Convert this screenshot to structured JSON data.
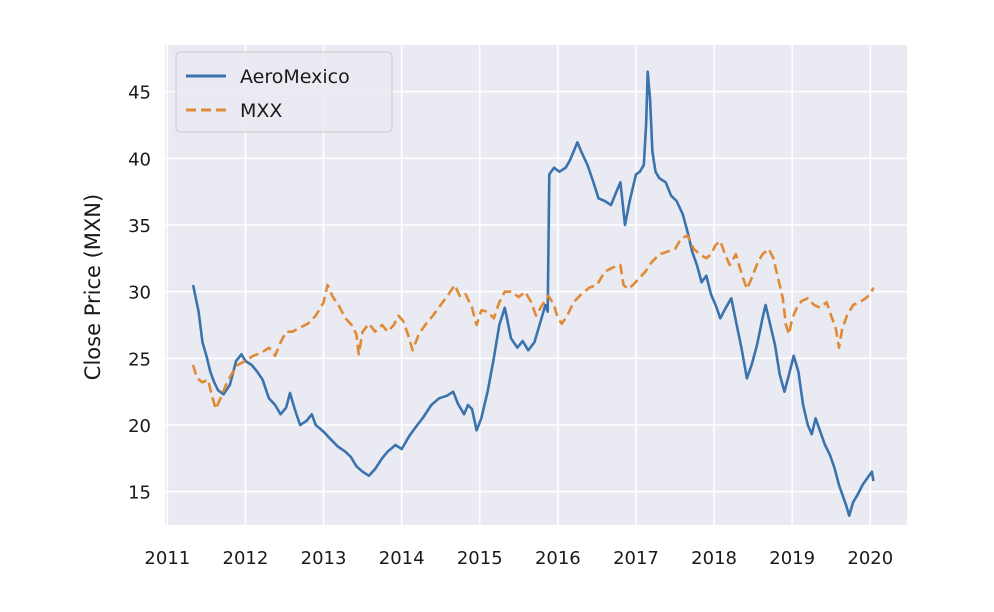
{
  "chart_data": {
    "type": "line",
    "title": "",
    "xlabel": "",
    "ylabel": "Close Price (MXN)",
    "xlim": [
      2010.97,
      2020.47
    ],
    "ylim": [
      12.5,
      48.5
    ],
    "x_ticks": [
      2011,
      2012,
      2013,
      2014,
      2015,
      2016,
      2017,
      2018,
      2019,
      2020
    ],
    "x_tick_labels": [
      "2011",
      "2012",
      "2013",
      "2014",
      "2015",
      "2016",
      "2017",
      "2018",
      "2019",
      "2020"
    ],
    "y_ticks": [
      15,
      20,
      25,
      30,
      35,
      40,
      45
    ],
    "y_tick_labels": [
      "15",
      "20",
      "25",
      "30",
      "35",
      "40",
      "45"
    ],
    "grid": true,
    "legend_position": "top-left",
    "colors": {
      "background": "#eaeaf2",
      "grid": "#ffffff"
    },
    "series": [
      {
        "name": "AeroMexico",
        "color": "#3a73ad",
        "style": "solid",
        "points": [
          [
            2011.33,
            30.5
          ],
          [
            2011.4,
            28.5
          ],
          [
            2011.45,
            26.2
          ],
          [
            2011.5,
            25.2
          ],
          [
            2011.55,
            24.0
          ],
          [
            2011.6,
            23.2
          ],
          [
            2011.65,
            22.6
          ],
          [
            2011.72,
            22.3
          ],
          [
            2011.8,
            23.0
          ],
          [
            2011.88,
            24.8
          ],
          [
            2011.95,
            25.3
          ],
          [
            2012.0,
            24.8
          ],
          [
            2012.08,
            24.5
          ],
          [
            2012.15,
            24.0
          ],
          [
            2012.22,
            23.4
          ],
          [
            2012.3,
            22.0
          ],
          [
            2012.38,
            21.5
          ],
          [
            2012.45,
            20.8
          ],
          [
            2012.52,
            21.3
          ],
          [
            2012.57,
            22.4
          ],
          [
            2012.63,
            21.2
          ],
          [
            2012.7,
            20.0
          ],
          [
            2012.78,
            20.3
          ],
          [
            2012.85,
            20.8
          ],
          [
            2012.9,
            20.0
          ],
          [
            2013.0,
            19.5
          ],
          [
            2013.08,
            19.0
          ],
          [
            2013.18,
            18.4
          ],
          [
            2013.28,
            18.0
          ],
          [
            2013.35,
            17.6
          ],
          [
            2013.42,
            16.9
          ],
          [
            2013.5,
            16.5
          ],
          [
            2013.58,
            16.2
          ],
          [
            2013.66,
            16.7
          ],
          [
            2013.75,
            17.5
          ],
          [
            2013.82,
            18.0
          ],
          [
            2013.92,
            18.5
          ],
          [
            2014.0,
            18.2
          ],
          [
            2014.1,
            19.2
          ],
          [
            2014.2,
            20.0
          ],
          [
            2014.28,
            20.6
          ],
          [
            2014.38,
            21.5
          ],
          [
            2014.48,
            22.0
          ],
          [
            2014.58,
            22.2
          ],
          [
            2014.66,
            22.5
          ],
          [
            2014.72,
            21.6
          ],
          [
            2014.8,
            20.8
          ],
          [
            2014.85,
            21.5
          ],
          [
            2014.9,
            21.2
          ],
          [
            2014.96,
            19.6
          ],
          [
            2015.02,
            20.5
          ],
          [
            2015.1,
            22.5
          ],
          [
            2015.18,
            25.0
          ],
          [
            2015.25,
            27.5
          ],
          [
            2015.32,
            28.8
          ],
          [
            2015.4,
            26.5
          ],
          [
            2015.48,
            25.8
          ],
          [
            2015.55,
            26.3
          ],
          [
            2015.62,
            25.6
          ],
          [
            2015.7,
            26.2
          ],
          [
            2015.78,
            27.8
          ],
          [
            2015.84,
            29.0
          ],
          [
            2015.87,
            28.5
          ],
          [
            2015.89,
            38.8
          ],
          [
            2015.95,
            39.3
          ],
          [
            2016.02,
            39.0
          ],
          [
            2016.1,
            39.3
          ],
          [
            2016.15,
            39.8
          ],
          [
            2016.2,
            40.5
          ],
          [
            2016.25,
            41.2
          ],
          [
            2016.3,
            40.5
          ],
          [
            2016.38,
            39.5
          ],
          [
            2016.45,
            38.3
          ],
          [
            2016.52,
            37.0
          ],
          [
            2016.6,
            36.8
          ],
          [
            2016.68,
            36.5
          ],
          [
            2016.75,
            37.5
          ],
          [
            2016.8,
            38.2
          ],
          [
            2016.86,
            35.0
          ],
          [
            2016.92,
            36.8
          ],
          [
            2017.0,
            38.8
          ],
          [
            2017.05,
            39.0
          ],
          [
            2017.1,
            39.5
          ],
          [
            2017.13,
            42.5
          ],
          [
            2017.15,
            46.5
          ],
          [
            2017.18,
            44.5
          ],
          [
            2017.21,
            40.5
          ],
          [
            2017.25,
            39.0
          ],
          [
            2017.3,
            38.5
          ],
          [
            2017.38,
            38.2
          ],
          [
            2017.45,
            37.2
          ],
          [
            2017.52,
            36.8
          ],
          [
            2017.6,
            35.8
          ],
          [
            2017.66,
            34.5
          ],
          [
            2017.72,
            33.0
          ],
          [
            2017.78,
            32.0
          ],
          [
            2017.84,
            30.7
          ],
          [
            2017.9,
            31.2
          ],
          [
            2017.96,
            29.8
          ],
          [
            2018.02,
            29.0
          ],
          [
            2018.08,
            28.0
          ],
          [
            2018.15,
            28.8
          ],
          [
            2018.22,
            29.5
          ],
          [
            2018.28,
            27.8
          ],
          [
            2018.35,
            25.8
          ],
          [
            2018.42,
            23.5
          ],
          [
            2018.48,
            24.5
          ],
          [
            2018.55,
            26.0
          ],
          [
            2018.62,
            28.0
          ],
          [
            2018.66,
            29.0
          ],
          [
            2018.72,
            27.5
          ],
          [
            2018.78,
            26.0
          ],
          [
            2018.84,
            23.8
          ],
          [
            2018.9,
            22.5
          ],
          [
            2018.96,
            23.8
          ],
          [
            2019.02,
            25.2
          ],
          [
            2019.08,
            24.0
          ],
          [
            2019.14,
            21.5
          ],
          [
            2019.2,
            20.0
          ],
          [
            2019.25,
            19.3
          ],
          [
            2019.3,
            20.5
          ],
          [
            2019.36,
            19.5
          ],
          [
            2019.42,
            18.5
          ],
          [
            2019.48,
            17.8
          ],
          [
            2019.54,
            16.8
          ],
          [
            2019.6,
            15.5
          ],
          [
            2019.66,
            14.5
          ],
          [
            2019.7,
            13.8
          ],
          [
            2019.73,
            13.2
          ],
          [
            2019.78,
            14.2
          ],
          [
            2019.84,
            14.8
          ],
          [
            2019.9,
            15.5
          ],
          [
            2019.96,
            16.0
          ],
          [
            2020.02,
            16.5
          ],
          [
            2020.04,
            15.8
          ]
        ]
      },
      {
        "name": "MXX",
        "color": "#e08a35",
        "style": "dashed",
        "points": [
          [
            2011.33,
            24.5
          ],
          [
            2011.38,
            23.5
          ],
          [
            2011.45,
            23.2
          ],
          [
            2011.52,
            23.4
          ],
          [
            2011.58,
            22.0
          ],
          [
            2011.62,
            21.2
          ],
          [
            2011.68,
            22.0
          ],
          [
            2011.75,
            23.0
          ],
          [
            2011.82,
            23.8
          ],
          [
            2011.9,
            24.5
          ],
          [
            2012.0,
            24.8
          ],
          [
            2012.1,
            25.2
          ],
          [
            2012.2,
            25.4
          ],
          [
            2012.3,
            25.8
          ],
          [
            2012.38,
            25.2
          ],
          [
            2012.45,
            26.2
          ],
          [
            2012.52,
            27.0
          ],
          [
            2012.6,
            27.0
          ],
          [
            2012.7,
            27.3
          ],
          [
            2012.8,
            27.6
          ],
          [
            2012.9,
            28.2
          ],
          [
            2013.0,
            29.2
          ],
          [
            2013.05,
            30.5
          ],
          [
            2013.12,
            29.6
          ],
          [
            2013.2,
            28.9
          ],
          [
            2013.28,
            28.0
          ],
          [
            2013.36,
            27.5
          ],
          [
            2013.42,
            26.8
          ],
          [
            2013.45,
            25.3
          ],
          [
            2013.5,
            27.0
          ],
          [
            2013.58,
            27.6
          ],
          [
            2013.66,
            27.0
          ],
          [
            2013.75,
            27.5
          ],
          [
            2013.82,
            27.0
          ],
          [
            2013.9,
            27.5
          ],
          [
            2013.96,
            28.2
          ],
          [
            2014.02,
            27.8
          ],
          [
            2014.08,
            26.8
          ],
          [
            2014.14,
            25.6
          ],
          [
            2014.22,
            26.8
          ],
          [
            2014.3,
            27.5
          ],
          [
            2014.4,
            28.2
          ],
          [
            2014.5,
            29.0
          ],
          [
            2014.6,
            29.8
          ],
          [
            2014.68,
            30.5
          ],
          [
            2014.75,
            29.6
          ],
          [
            2014.82,
            29.8
          ],
          [
            2014.9,
            28.8
          ],
          [
            2014.96,
            27.5
          ],
          [
            2015.02,
            28.6
          ],
          [
            2015.1,
            28.5
          ],
          [
            2015.18,
            28.0
          ],
          [
            2015.25,
            29.2
          ],
          [
            2015.32,
            30.0
          ],
          [
            2015.4,
            30.0
          ],
          [
            2015.5,
            29.6
          ],
          [
            2015.58,
            30.0
          ],
          [
            2015.66,
            29.2
          ],
          [
            2015.72,
            28.2
          ],
          [
            2015.8,
            29.0
          ],
          [
            2015.88,
            29.7
          ],
          [
            2015.95,
            29.0
          ],
          [
            2016.0,
            28.0
          ],
          [
            2016.05,
            27.6
          ],
          [
            2016.12,
            28.2
          ],
          [
            2016.2,
            29.2
          ],
          [
            2016.3,
            29.8
          ],
          [
            2016.4,
            30.3
          ],
          [
            2016.5,
            30.5
          ],
          [
            2016.6,
            31.5
          ],
          [
            2016.7,
            31.8
          ],
          [
            2016.8,
            32.0
          ],
          [
            2016.84,
            30.5
          ],
          [
            2016.9,
            30.2
          ],
          [
            2016.96,
            30.5
          ],
          [
            2017.04,
            31.0
          ],
          [
            2017.12,
            31.5
          ],
          [
            2017.2,
            32.2
          ],
          [
            2017.3,
            32.8
          ],
          [
            2017.4,
            33.0
          ],
          [
            2017.5,
            33.2
          ],
          [
            2017.58,
            34.0
          ],
          [
            2017.66,
            34.2
          ],
          [
            2017.74,
            33.2
          ],
          [
            2017.82,
            32.8
          ],
          [
            2017.9,
            32.5
          ],
          [
            2017.96,
            32.8
          ],
          [
            2018.02,
            33.5
          ],
          [
            2018.08,
            33.8
          ],
          [
            2018.14,
            32.8
          ],
          [
            2018.2,
            32.0
          ],
          [
            2018.28,
            32.8
          ],
          [
            2018.36,
            31.2
          ],
          [
            2018.42,
            30.2
          ],
          [
            2018.48,
            31.0
          ],
          [
            2018.56,
            32.2
          ],
          [
            2018.62,
            32.8
          ],
          [
            2018.7,
            33.2
          ],
          [
            2018.76,
            32.5
          ],
          [
            2018.82,
            31.0
          ],
          [
            2018.88,
            29.5
          ],
          [
            2018.92,
            27.5
          ],
          [
            2018.96,
            26.8
          ],
          [
            2019.0,
            28.0
          ],
          [
            2019.06,
            28.8
          ],
          [
            2019.12,
            29.3
          ],
          [
            2019.2,
            29.5
          ],
          [
            2019.28,
            29.0
          ],
          [
            2019.36,
            28.8
          ],
          [
            2019.44,
            29.2
          ],
          [
            2019.5,
            28.2
          ],
          [
            2019.56,
            27.2
          ],
          [
            2019.6,
            25.8
          ],
          [
            2019.64,
            27.2
          ],
          [
            2019.7,
            28.2
          ],
          [
            2019.78,
            29.0
          ],
          [
            2019.86,
            29.2
          ],
          [
            2019.94,
            29.5
          ],
          [
            2020.0,
            29.8
          ],
          [
            2020.04,
            30.3
          ]
        ]
      }
    ]
  }
}
